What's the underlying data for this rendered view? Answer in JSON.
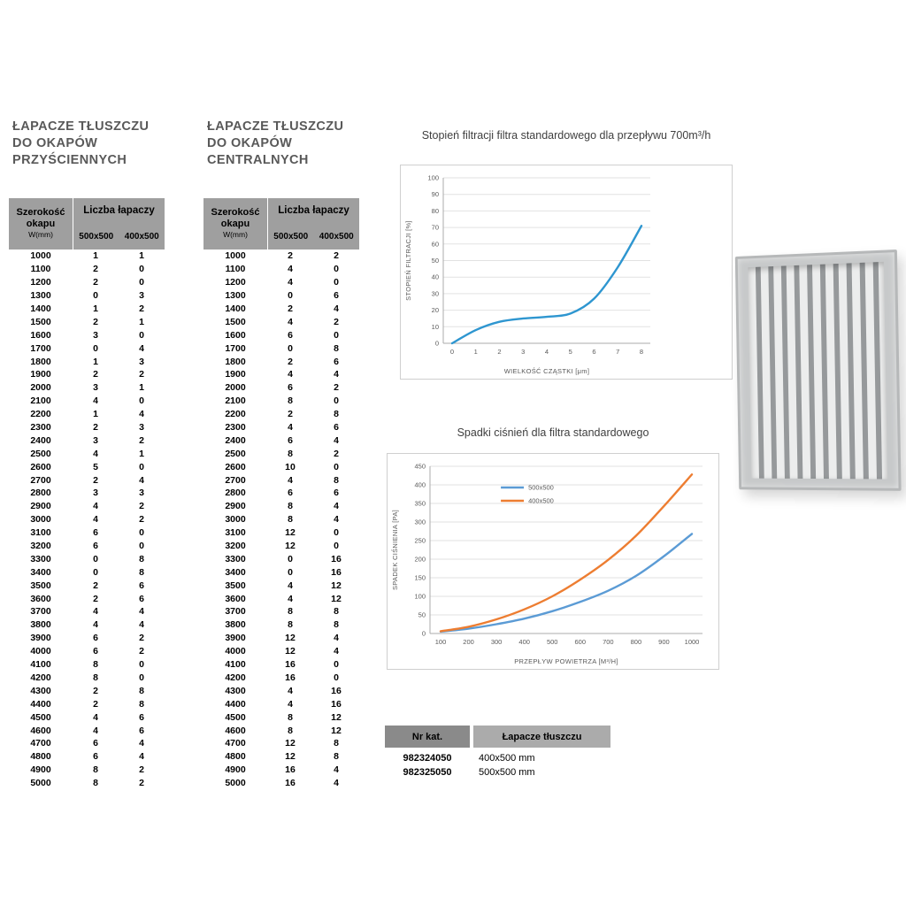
{
  "tables": {
    "wall": {
      "title_lines": [
        "ŁAPACZE TŁUSZCZU",
        "DO OKAPÓW",
        "PRZYŚCIENNYCH"
      ],
      "col1_lines": [
        "Szerokość",
        "okapu"
      ],
      "col1_sub": "W(mm)",
      "col2_header": "Liczba łapaczy",
      "sub_headers": [
        "500x500",
        "400x500"
      ],
      "rows": [
        [
          1000,
          1,
          1
        ],
        [
          1100,
          2,
          0
        ],
        [
          1200,
          2,
          0
        ],
        [
          1300,
          0,
          3
        ],
        [
          1400,
          1,
          2
        ],
        [
          1500,
          2,
          1
        ],
        [
          1600,
          3,
          0
        ],
        [
          1700,
          0,
          4
        ],
        [
          1800,
          1,
          3
        ],
        [
          1900,
          2,
          2
        ],
        [
          2000,
          3,
          1
        ],
        [
          2100,
          4,
          0
        ],
        [
          2200,
          1,
          4
        ],
        [
          2300,
          2,
          3
        ],
        [
          2400,
          3,
          2
        ],
        [
          2500,
          4,
          1
        ],
        [
          2600,
          5,
          0
        ],
        [
          2700,
          2,
          4
        ],
        [
          2800,
          3,
          3
        ],
        [
          2900,
          4,
          2
        ],
        [
          3000,
          4,
          2
        ],
        [
          3100,
          6,
          0
        ],
        [
          3200,
          6,
          0
        ],
        [
          3300,
          0,
          8
        ],
        [
          3400,
          0,
          8
        ],
        [
          3500,
          2,
          6
        ],
        [
          3600,
          2,
          6
        ],
        [
          3700,
          4,
          4
        ],
        [
          3800,
          4,
          4
        ],
        [
          3900,
          6,
          2
        ],
        [
          4000,
          6,
          2
        ],
        [
          4100,
          8,
          0
        ],
        [
          4200,
          8,
          0
        ],
        [
          4300,
          2,
          8
        ],
        [
          4400,
          2,
          8
        ],
        [
          4500,
          4,
          6
        ],
        [
          4600,
          4,
          6
        ],
        [
          4700,
          6,
          4
        ],
        [
          4800,
          6,
          4
        ],
        [
          4900,
          8,
          2
        ],
        [
          5000,
          8,
          2
        ]
      ]
    },
    "central": {
      "title_lines": [
        "ŁAPACZE TŁUSZCZU",
        "DO OKAPÓW",
        "CENTRALNYCH"
      ],
      "col1_lines": [
        "Szerokość",
        "okapu"
      ],
      "col1_sub": "W(mm)",
      "col2_header": "Liczba łapaczy",
      "sub_headers": [
        "500x500",
        "400x500"
      ],
      "rows": [
        [
          1000,
          2,
          2
        ],
        [
          1100,
          4,
          0
        ],
        [
          1200,
          4,
          0
        ],
        [
          1300,
          0,
          6
        ],
        [
          1400,
          2,
          4
        ],
        [
          1500,
          4,
          2
        ],
        [
          1600,
          6,
          0
        ],
        [
          1700,
          0,
          8
        ],
        [
          1800,
          2,
          6
        ],
        [
          1900,
          4,
          4
        ],
        [
          2000,
          6,
          2
        ],
        [
          2100,
          8,
          0
        ],
        [
          2200,
          2,
          8
        ],
        [
          2300,
          4,
          6
        ],
        [
          2400,
          6,
          4
        ],
        [
          2500,
          8,
          2
        ],
        [
          2600,
          10,
          0
        ],
        [
          2700,
          4,
          8
        ],
        [
          2800,
          6,
          6
        ],
        [
          2900,
          8,
          4
        ],
        [
          3000,
          8,
          4
        ],
        [
          3100,
          12,
          0
        ],
        [
          3200,
          12,
          0
        ],
        [
          3300,
          0,
          16
        ],
        [
          3400,
          0,
          16
        ],
        [
          3500,
          4,
          12
        ],
        [
          3600,
          4,
          12
        ],
        [
          3700,
          8,
          8
        ],
        [
          3800,
          8,
          8
        ],
        [
          3900,
          12,
          4
        ],
        [
          4000,
          12,
          4
        ],
        [
          4100,
          16,
          0
        ],
        [
          4200,
          16,
          0
        ],
        [
          4300,
          4,
          16
        ],
        [
          4400,
          4,
          16
        ],
        [
          4500,
          8,
          12
        ],
        [
          4600,
          8,
          12
        ],
        [
          4700,
          12,
          8
        ],
        [
          4800,
          12,
          8
        ],
        [
          4900,
          16,
          4
        ],
        [
          5000,
          16,
          4
        ]
      ]
    }
  },
  "chart_data": [
    {
      "type": "line",
      "title": "Stopień filtracji filtra standardowego dla przepływu 700m³/h",
      "xlabel": "WIELKOŚĆ CZĄSTKI [μm]",
      "ylabel": "STOPIEŃ FILTRACJI [%]",
      "x": [
        0,
        1,
        2,
        3,
        4,
        5,
        6,
        7,
        8
      ],
      "xticks": [
        0,
        1,
        2,
        3,
        4,
        5,
        6,
        7,
        8
      ],
      "xlim": [
        0,
        8
      ],
      "ylim": [
        0,
        100
      ],
      "yticks": [
        0,
        10,
        20,
        30,
        40,
        50,
        60,
        70,
        80,
        90,
        100
      ],
      "grid": "horizontal",
      "legend": false,
      "series": [
        {
          "name": "stopień filtracji",
          "color": "#2e96d0",
          "values": [
            0,
            8,
            13,
            15,
            16,
            18,
            27,
            46,
            71
          ]
        }
      ],
      "layout": {
        "margins": {
          "l": 48,
          "r": 92,
          "t": 14,
          "b": 40
        },
        "xpad": 10
      }
    },
    {
      "type": "line",
      "title": "Spadki ciśnień dla filtra standardowego",
      "xlabel": "PRZEPŁYW POWIETRZA [M³/H]",
      "ylabel": "SPADEK CIŚNIENIA [PA]",
      "x": [
        100,
        200,
        300,
        400,
        500,
        600,
        700,
        800,
        900,
        1000
      ],
      "xticks": [
        100,
        200,
        300,
        400,
        500,
        600,
        700,
        800,
        900,
        1000
      ],
      "xlim": [
        100,
        1000
      ],
      "ylim": [
        0,
        450
      ],
      "yticks": [
        0,
        50,
        100,
        150,
        200,
        250,
        300,
        350,
        400,
        450
      ],
      "grid": "horizontal",
      "legend": true,
      "series": [
        {
          "name": "500x500",
          "color": "#5b9bd5",
          "values": [
            5,
            13,
            25,
            40,
            60,
            85,
            115,
            155,
            208,
            268
          ]
        },
        {
          "name": "400x500",
          "color": "#ed7d31",
          "values": [
            6,
            18,
            38,
            65,
            100,
            145,
            198,
            263,
            343,
            428
          ]
        }
      ],
      "layout": {
        "margins": {
          "l": 48,
          "r": 18,
          "t": 14,
          "b": 40
        },
        "xpad": 12
      }
    }
  ],
  "catalog": {
    "headers": [
      "Nr kat.",
      "Łapacze tłuszczu"
    ],
    "rows": [
      [
        "982324050",
        "400x500 mm"
      ],
      [
        "982325050",
        "500x500 mm"
      ]
    ]
  }
}
